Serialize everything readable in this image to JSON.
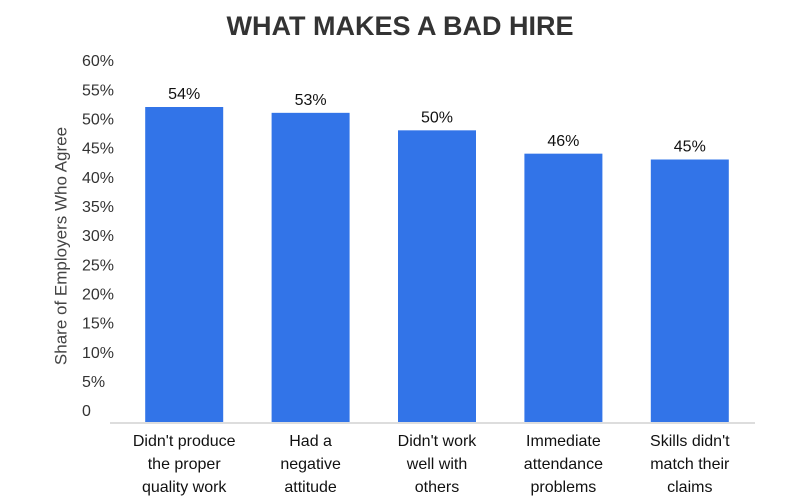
{
  "chart_data": {
    "type": "bar",
    "title": "WHAT MAKES A BAD HIRE",
    "y_label": "Share of Employers Who Agree",
    "categories": [
      "Didn't produce\nthe proper\nquality work",
      "Had a\nnegative\nattitude",
      "Didn't work\nwell with\nothers",
      "Immediate\nattendance\nproblems",
      "Skills didn't\nmatch their\nclaims"
    ],
    "values": [
      54,
      53,
      50,
      46,
      45
    ],
    "value_labels": [
      "54%",
      "53%",
      "50%",
      "46%",
      "45%"
    ],
    "color": "#3274e8",
    "ylim": [
      0,
      60
    ],
    "yticks": [
      0,
      {
        "value": 5,
        "label": "5%"
      },
      {
        "value": 10,
        "label": "10%"
      },
      {
        "value": 15,
        "label": "15%"
      },
      {
        "value": 20,
        "label": "20%"
      },
      {
        "value": 25,
        "label": "25%"
      },
      {
        "value": 30,
        "label": "30%"
      },
      {
        "value": 35,
        "label": "35%"
      },
      {
        "value": 40,
        "label": "40%"
      },
      {
        "value": 45,
        "label": "45%"
      },
      {
        "value": 50,
        "label": "50%"
      },
      {
        "value": 55,
        "label": "55%"
      },
      {
        "value": 60,
        "label": "60%"
      }
    ],
    "grid": false
  }
}
